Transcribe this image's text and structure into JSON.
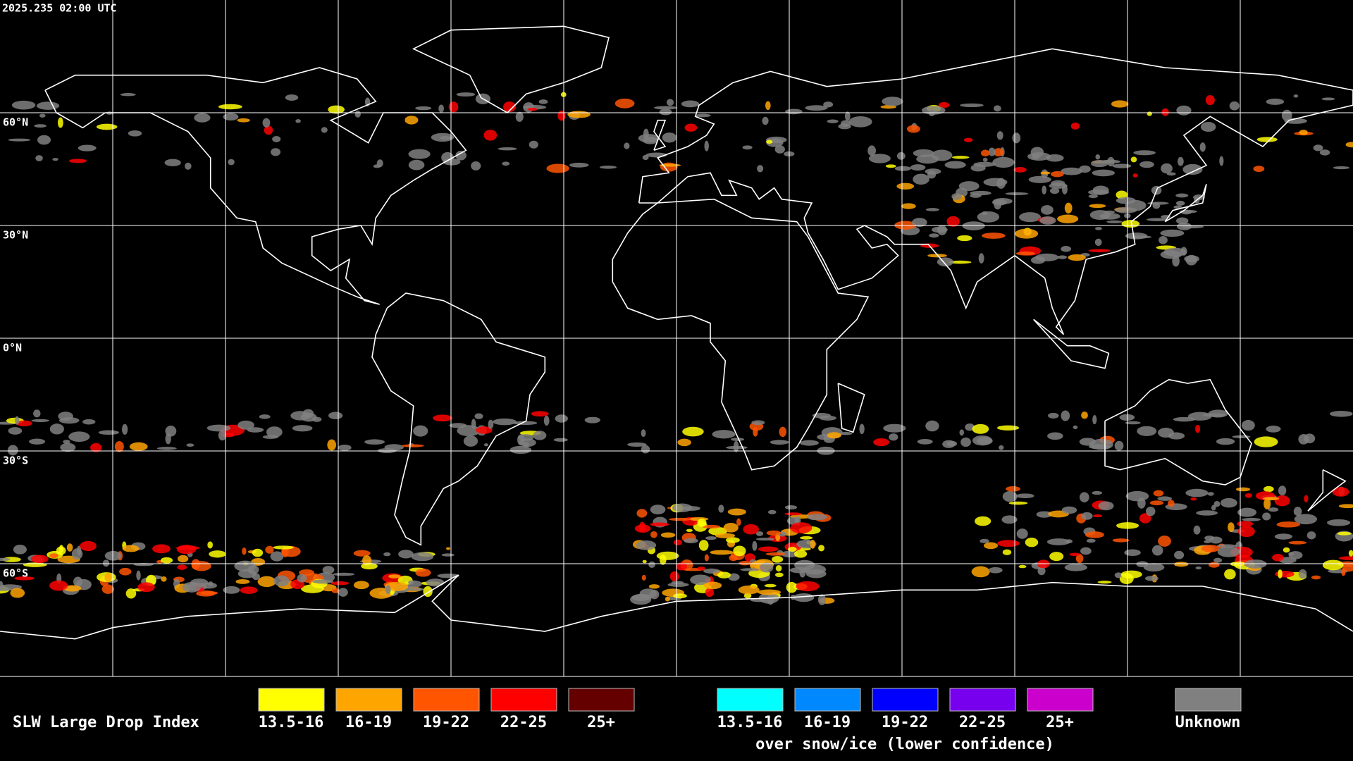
{
  "header": {
    "timestamp": "2025.235 02:00 UTC"
  },
  "map": {
    "lat_labels": [
      "60°N",
      "30°N",
      "0°N",
      "30°S",
      "60°S"
    ]
  },
  "legend": {
    "title": "SLW Large Drop Index",
    "groups": [
      {
        "items": [
          {
            "label": "13.5-16",
            "color": "#ffff00"
          },
          {
            "label": "16-19",
            "color": "#ffa500"
          },
          {
            "label": "19-22",
            "color": "#ff5500"
          },
          {
            "label": "22-25",
            "color": "#ff0000"
          },
          {
            "label": "25+",
            "color": "#640000"
          }
        ]
      },
      {
        "items": [
          {
            "label": "13.5-16",
            "color": "#00ffff"
          },
          {
            "label": "16-19",
            "color": "#0088ff"
          },
          {
            "label": "19-22",
            "color": "#0000ff"
          },
          {
            "label": "22-25",
            "color": "#7700ee"
          },
          {
            "label": "25+",
            "color": "#cc00cc"
          }
        ],
        "caption": "over snow/ice (lower confidence)"
      }
    ],
    "unknown": {
      "label": "Unknown",
      "color": "#808080"
    }
  }
}
